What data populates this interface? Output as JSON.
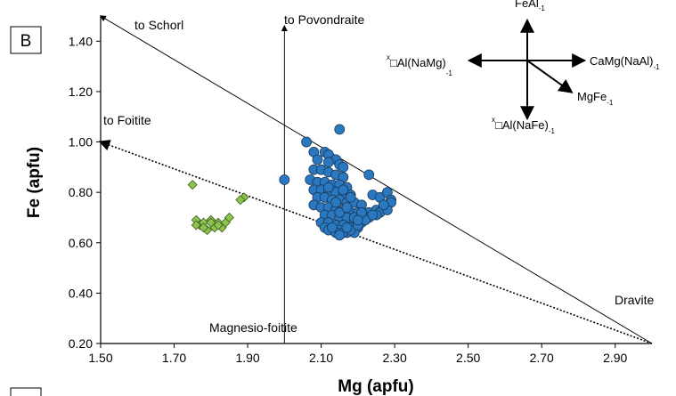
{
  "chart_data": {
    "type": "scatter",
    "panel_label": "B",
    "xlabel": "Mg (apfu)",
    "ylabel": "Fe (apfu)",
    "xlim": [
      1.5,
      3.0
    ],
    "ylim": [
      0.2,
      1.5
    ],
    "x_ticks": [
      "1.50",
      "1.70",
      "1.90",
      "2.10",
      "2.30",
      "2.50",
      "2.70",
      "2.90"
    ],
    "y_ticks": [
      "0.20",
      "0.40",
      "0.60",
      "0.80",
      "1.00",
      "1.20",
      "1.40"
    ],
    "x_tick_values": [
      1.5,
      1.7,
      1.9,
      2.1,
      2.3,
      2.5,
      2.7,
      2.9
    ],
    "y_tick_values": [
      0.2,
      0.4,
      0.6,
      0.8,
      1.0,
      1.2,
      1.4
    ],
    "grid": false,
    "reference_lines": [
      {
        "label": "to Schorl",
        "from": [
          3.0,
          0.2
        ],
        "to": [
          1.5,
          1.5
        ],
        "style": "solid",
        "arrow": true
      },
      {
        "label": "to Foitite",
        "from": [
          3.0,
          0.2
        ],
        "to": [
          1.5,
          1.0
        ],
        "style": "dotted",
        "arrow": true
      },
      {
        "label": "to Povondraite",
        "from": [
          2.0,
          0.2
        ],
        "to": [
          2.0,
          1.46
        ],
        "style": "solid",
        "arrow": true
      }
    ],
    "annotations": {
      "schorl": "to Schorl",
      "foitite": "to Foitite",
      "povondraite": "to Povondraite",
      "magnesio_foitite": "Magnesio-foitite",
      "dravite": "Dravite"
    },
    "exchange_vectors": {
      "up": {
        "pre": "FeAl",
        "sub": "-1"
      },
      "right": {
        "pre": "CaMg(NaAl)",
        "sub": "-1"
      },
      "left": {
        "sup": "x",
        "pre": "□Al(NaMg)",
        "sub": "-1"
      },
      "down": {
        "sup": "x",
        "pre": "□Al(NaFe)",
        "sub": "-1"
      },
      "diag": {
        "pre": "MgFe",
        "sub": "-1"
      }
    },
    "series": [
      {
        "marker": "diamond",
        "color": "#8cc34e",
        "x": [
          1.75,
          1.89,
          1.88,
          1.76,
          1.77,
          1.78,
          1.79,
          1.8,
          1.81,
          1.82,
          1.83,
          1.84,
          1.85,
          1.76,
          1.78,
          1.8,
          1.82
        ],
        "y": [
          0.83,
          0.78,
          0.77,
          0.69,
          0.67,
          0.68,
          0.65,
          0.69,
          0.66,
          0.68,
          0.66,
          0.68,
          0.7,
          0.67,
          0.66,
          0.68,
          0.67
        ]
      },
      {
        "marker": "circle",
        "color": "#2a78c0",
        "x": [
          2.15,
          2.06,
          2.08,
          2.11,
          2.12,
          2.14,
          2.09,
          2.12,
          2.15,
          2.16,
          2.08,
          2.1,
          2.12,
          2.14,
          2.16,
          2.0,
          2.07,
          2.09,
          2.11,
          2.13,
          2.15,
          2.17,
          2.23,
          2.08,
          2.1,
          2.12,
          2.14,
          2.16,
          2.18,
          2.09,
          2.11,
          2.13,
          2.15,
          2.17,
          2.19,
          2.21,
          2.08,
          2.1,
          2.12,
          2.14,
          2.16,
          2.18,
          2.2,
          2.22,
          2.24,
          2.26,
          2.28,
          2.29,
          2.11,
          2.13,
          2.15,
          2.17,
          2.19,
          2.21,
          2.23,
          2.25,
          2.27,
          2.29,
          2.1,
          2.12,
          2.14,
          2.16,
          2.18,
          2.2,
          2.22,
          2.24,
          2.26,
          2.28,
          2.11,
          2.13,
          2.15,
          2.17,
          2.19,
          2.21,
          2.23,
          2.25,
          2.27,
          2.12,
          2.14,
          2.16,
          2.18,
          2.2,
          2.22,
          2.24,
          2.13,
          2.15,
          2.17,
          2.19,
          2.21,
          2.14,
          2.16,
          2.18,
          2.15,
          2.17,
          2.12,
          2.2
        ],
        "y": [
          1.05,
          1.0,
          0.96,
          0.96,
          0.95,
          0.93,
          0.93,
          0.92,
          0.91,
          0.9,
          0.89,
          0.89,
          0.88,
          0.87,
          0.86,
          0.85,
          0.85,
          0.84,
          0.84,
          0.83,
          0.83,
          0.82,
          0.87,
          0.81,
          0.81,
          0.8,
          0.8,
          0.79,
          0.79,
          0.78,
          0.78,
          0.77,
          0.77,
          0.76,
          0.76,
          0.75,
          0.75,
          0.74,
          0.74,
          0.73,
          0.73,
          0.72,
          0.72,
          0.71,
          0.79,
          0.78,
          0.8,
          0.77,
          0.71,
          0.71,
          0.7,
          0.7,
          0.69,
          0.69,
          0.72,
          0.73,
          0.74,
          0.76,
          0.68,
          0.68,
          0.67,
          0.67,
          0.66,
          0.66,
          0.7,
          0.71,
          0.72,
          0.73,
          0.66,
          0.65,
          0.65,
          0.64,
          0.64,
          0.68,
          0.7,
          0.71,
          0.75,
          0.65,
          0.64,
          0.64,
          0.65,
          0.67,
          0.69,
          0.71,
          0.66,
          0.63,
          0.66,
          0.7,
          0.72,
          0.76,
          0.81,
          0.78,
          0.72,
          0.74,
          0.82,
          0.69
        ]
      }
    ]
  }
}
